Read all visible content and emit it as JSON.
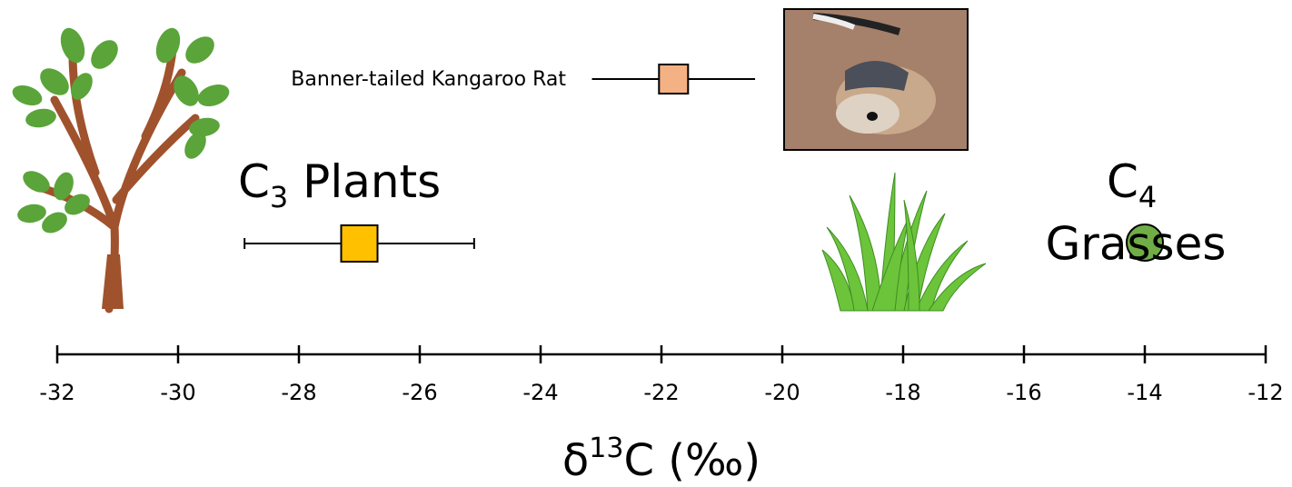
{
  "chart_data": {
    "type": "dot-errorbar",
    "points": [
      {
        "label": [
          "C",
          "3",
          " Plants"
        ],
        "value": -27,
        "error": 1.9,
        "color": "#ffc000",
        "marker": "square",
        "size": 40
      },
      {
        "label": [
          "Banner-tailed Kangaroo Rat"
        ],
        "value": -21.8,
        "error": 1.35,
        "color": "#f4b183",
        "marker": "square",
        "size": 32
      },
      {
        "label": [
          "C",
          "4",
          "Grasses"
        ],
        "value": -14,
        "color": "#70ad47",
        "marker": "circle",
        "size": 40
      }
    ],
    "xlabel": [
      "δ",
      "13",
      "C (‰)"
    ],
    "xlim": [
      -32,
      -12
    ],
    "xticks": [
      -32,
      -30,
      -28,
      -26,
      -24,
      -22,
      -20,
      -18,
      -16,
      -14,
      -12
    ]
  }
}
